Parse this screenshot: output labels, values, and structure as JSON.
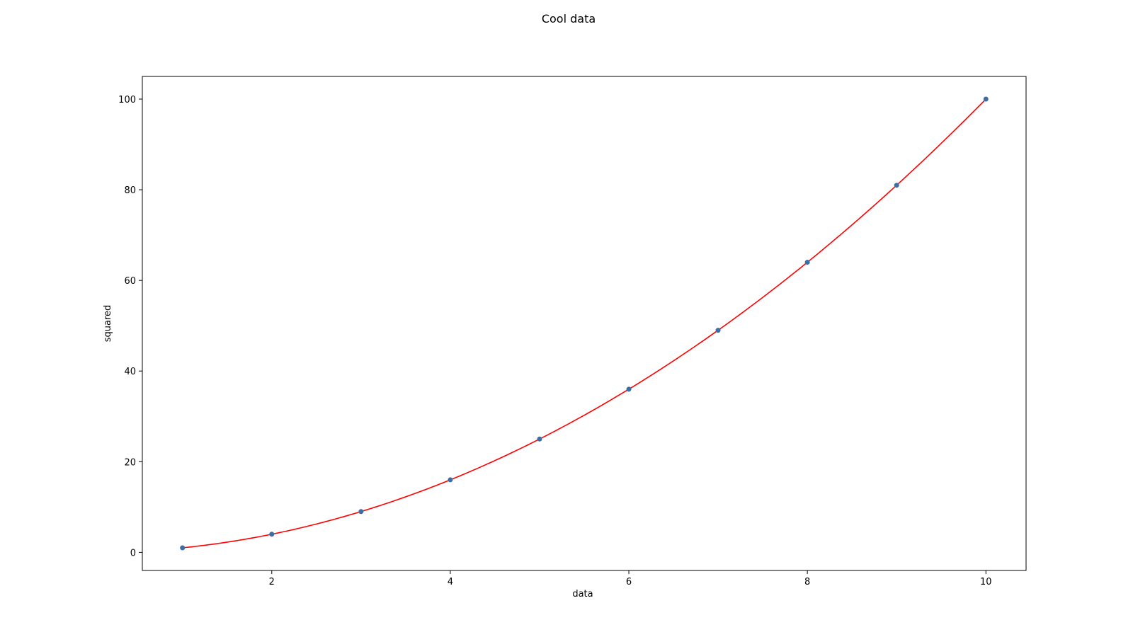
{
  "chart_data": {
    "type": "scatter",
    "title": "Cool data",
    "xlabel": "data",
    "ylabel": "squared",
    "xlim": [
      0.55,
      10.45
    ],
    "ylim": [
      -4.0,
      105.0
    ],
    "xticks": [
      2,
      4,
      6,
      8,
      10
    ],
    "yticks": [
      0,
      20,
      40,
      60,
      80,
      100
    ],
    "grid": false,
    "series": [
      {
        "kind": "scatter",
        "color": "#3b6ea5",
        "x": [
          1,
          2,
          3,
          4,
          5,
          6,
          7,
          8,
          9,
          10
        ],
        "y": [
          1,
          4,
          9,
          16,
          25,
          36,
          49,
          64,
          81,
          100
        ]
      },
      {
        "kind": "line",
        "color": "#ff0000",
        "function": "y = x^2",
        "x_range": [
          1,
          10
        ]
      }
    ]
  }
}
